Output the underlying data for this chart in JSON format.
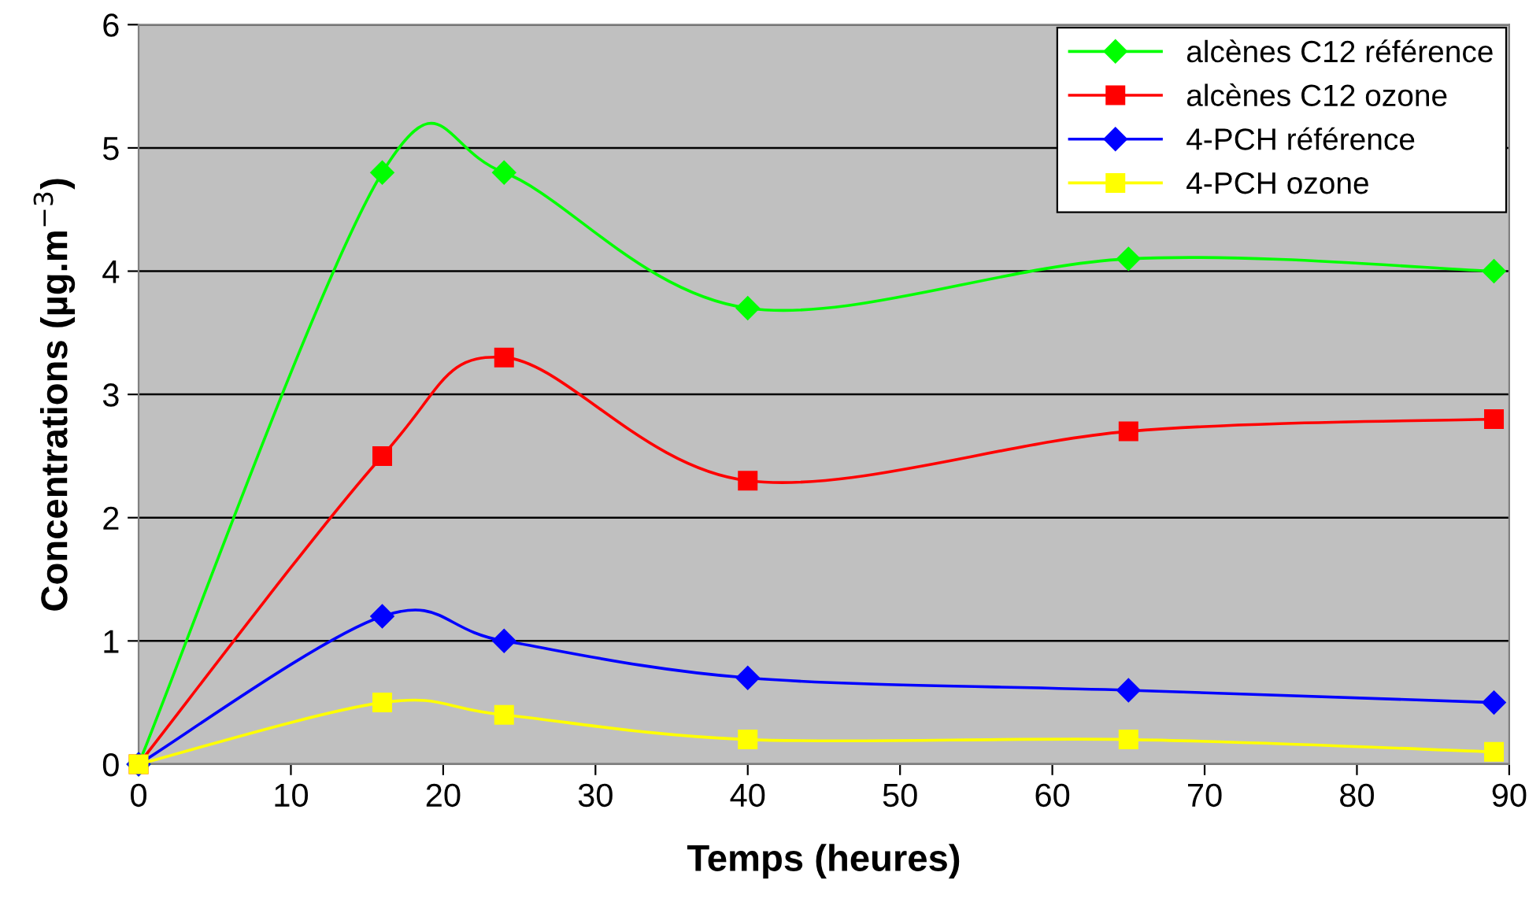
{
  "chart_data": {
    "type": "line",
    "xlabel": "Temps (heures)",
    "ylabel": "Concentrations (µg.m$^{−3}$)",
    "x": [
      0,
      16,
      24,
      40,
      65,
      89
    ],
    "series": [
      {
        "name": "alcènes C12 référence",
        "color": "#00ff00",
        "marker": "diamond",
        "values": [
          0,
          4.8,
          4.8,
          3.7,
          4.1,
          4.0
        ]
      },
      {
        "name": "alcènes C12 ozone",
        "color": "#ff0000",
        "marker": "square",
        "values": [
          0,
          2.5,
          3.3,
          2.3,
          2.7,
          2.8
        ]
      },
      {
        "name": "4-PCH référence",
        "color": "#0000ff",
        "marker": "diamond",
        "values": [
          0,
          1.2,
          1.0,
          0.7,
          0.6,
          0.5
        ]
      },
      {
        "name": "4-PCH ozone",
        "color": "#ffff00",
        "marker": "square",
        "values": [
          0,
          0.5,
          0.4,
          0.2,
          0.2,
          0.1
        ]
      }
    ],
    "xlim": [
      0,
      90
    ],
    "ylim": [
      0,
      6
    ],
    "xticks": [
      0,
      10,
      20,
      30,
      40,
      50,
      60,
      70,
      80,
      90
    ],
    "yticks": [
      0,
      1,
      2,
      3,
      4,
      5,
      6
    ],
    "grid": "y",
    "legend": "top right",
    "line_style": "solid"
  }
}
